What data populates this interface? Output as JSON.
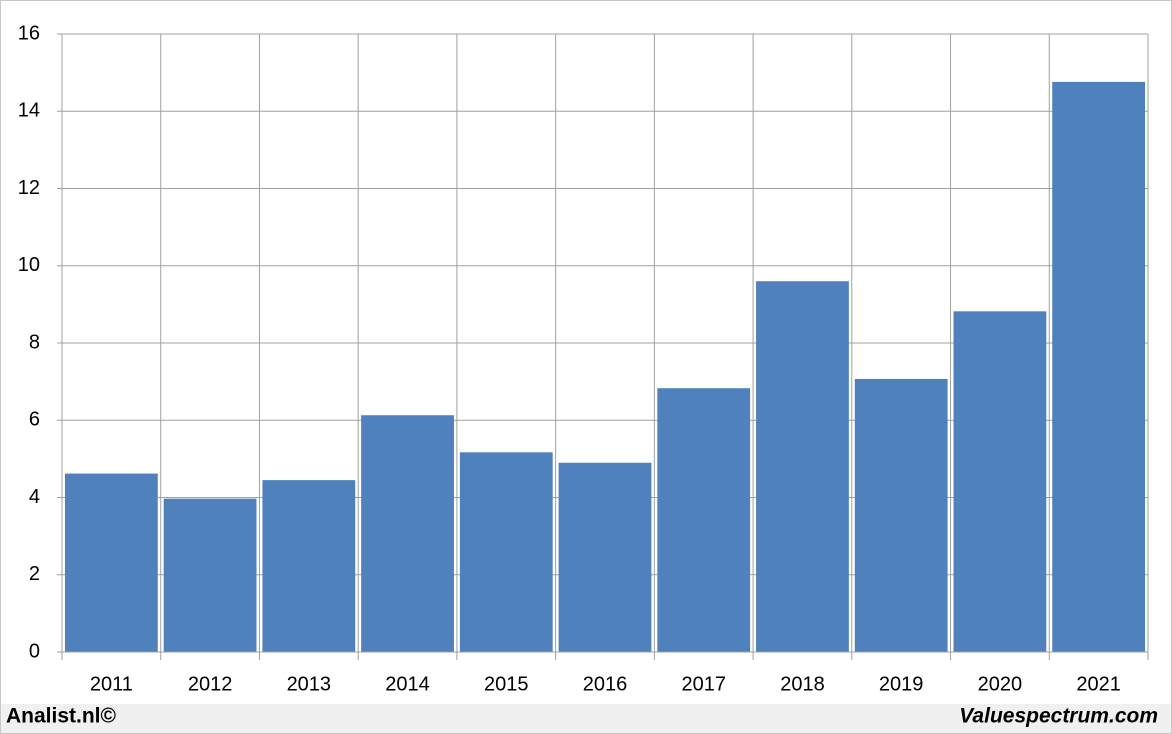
{
  "chart_data": {
    "type": "bar",
    "categories": [
      "2011",
      "2012",
      "2013",
      "2014",
      "2015",
      "2016",
      "2017",
      "2018",
      "2019",
      "2020",
      "2021"
    ],
    "values": [
      4.62,
      3.97,
      4.45,
      6.13,
      5.17,
      4.9,
      6.83,
      9.6,
      7.07,
      8.82,
      14.76
    ],
    "color": "#4f81bd",
    "ylim": [
      0,
      16
    ],
    "yticks": [
      0,
      2,
      4,
      6,
      8,
      10,
      12,
      14,
      16
    ],
    "grid": true,
    "credits": [
      "Analist.nl©",
      "Valuespectrum.com"
    ]
  }
}
